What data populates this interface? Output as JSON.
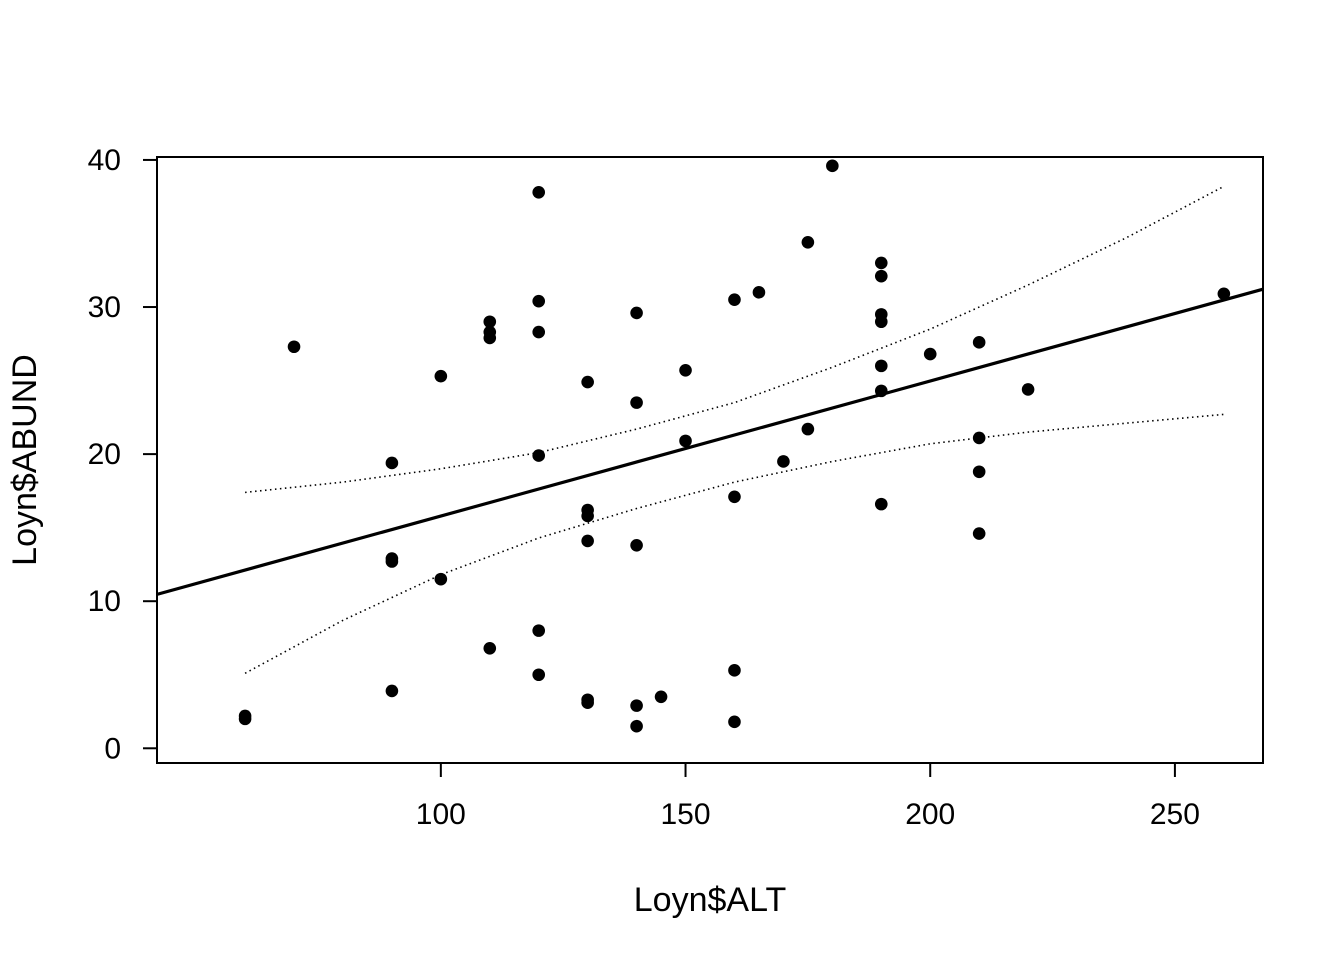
{
  "chart_data": {
    "type": "scatter",
    "title": "",
    "xlabel": "Loyn$ALT",
    "ylabel": "Loyn$ABUND",
    "xlim": [
      42,
      268
    ],
    "ylim": [
      -1,
      40.2
    ],
    "xticks": [
      100,
      150,
      200,
      250
    ],
    "xtick_labels": [
      "100",
      "150",
      "200",
      "250"
    ],
    "yticks": [
      0,
      10,
      20,
      30,
      40
    ],
    "ytick_labels": [
      "0",
      "10",
      "20",
      "30",
      "40"
    ],
    "grid": false,
    "legend": "none",
    "colors": {
      "points": "#000000",
      "lines": "#000000",
      "background": "#ffffff"
    },
    "points": [
      {
        "x": 60,
        "y": 2.2
      },
      {
        "x": 60,
        "y": 2.0
      },
      {
        "x": 70,
        "y": 27.3
      },
      {
        "x": 90,
        "y": 19.4
      },
      {
        "x": 90,
        "y": 12.9
      },
      {
        "x": 90,
        "y": 12.7
      },
      {
        "x": 90,
        "y": 3.9
      },
      {
        "x": 100,
        "y": 25.3
      },
      {
        "x": 100,
        "y": 11.5
      },
      {
        "x": 110,
        "y": 29.0
      },
      {
        "x": 110,
        "y": 28.3
      },
      {
        "x": 110,
        "y": 27.9
      },
      {
        "x": 110,
        "y": 6.8
      },
      {
        "x": 120,
        "y": 37.8
      },
      {
        "x": 120,
        "y": 30.4
      },
      {
        "x": 120,
        "y": 28.3
      },
      {
        "x": 120,
        "y": 19.9
      },
      {
        "x": 120,
        "y": 8.0
      },
      {
        "x": 120,
        "y": 5.0
      },
      {
        "x": 130,
        "y": 24.9
      },
      {
        "x": 130,
        "y": 16.2
      },
      {
        "x": 130,
        "y": 15.8
      },
      {
        "x": 130,
        "y": 14.1
      },
      {
        "x": 130,
        "y": 3.3
      },
      {
        "x": 130,
        "y": 3.1
      },
      {
        "x": 140,
        "y": 29.6
      },
      {
        "x": 140,
        "y": 23.5
      },
      {
        "x": 140,
        "y": 13.8
      },
      {
        "x": 140,
        "y": 2.9
      },
      {
        "x": 140,
        "y": 1.5
      },
      {
        "x": 145,
        "y": 3.5
      },
      {
        "x": 150,
        "y": 25.7
      },
      {
        "x": 150,
        "y": 20.9
      },
      {
        "x": 160,
        "y": 30.5
      },
      {
        "x": 160,
        "y": 17.1
      },
      {
        "x": 160,
        "y": 5.3
      },
      {
        "x": 160,
        "y": 1.8
      },
      {
        "x": 165,
        "y": 31.0
      },
      {
        "x": 170,
        "y": 19.5
      },
      {
        "x": 175,
        "y": 34.4
      },
      {
        "x": 175,
        "y": 21.7
      },
      {
        "x": 180,
        "y": 39.6
      },
      {
        "x": 190,
        "y": 33.0
      },
      {
        "x": 190,
        "y": 32.1
      },
      {
        "x": 190,
        "y": 29.5
      },
      {
        "x": 190,
        "y": 29.0
      },
      {
        "x": 190,
        "y": 26.0
      },
      {
        "x": 190,
        "y": 24.3
      },
      {
        "x": 190,
        "y": 16.6
      },
      {
        "x": 200,
        "y": 26.8
      },
      {
        "x": 210,
        "y": 27.6
      },
      {
        "x": 210,
        "y": 21.1
      },
      {
        "x": 210,
        "y": 18.8
      },
      {
        "x": 210,
        "y": 14.6
      },
      {
        "x": 220,
        "y": 24.4
      },
      {
        "x": 260,
        "y": 30.9
      }
    ],
    "regression_line": {
      "intercept": 6.61,
      "slope": 0.0918,
      "style": "solid"
    },
    "confidence_upper": {
      "style": "dotted",
      "x": [
        60,
        80,
        100,
        120,
        140,
        160,
        180,
        200,
        220,
        240,
        260
      ],
      "y": [
        17.4,
        18.1,
        19.0,
        20.1,
        21.7,
        23.5,
        25.9,
        28.5,
        31.5,
        34.7,
        38.2
      ]
    },
    "confidence_lower": {
      "style": "dotted",
      "x": [
        60,
        80,
        100,
        120,
        140,
        160,
        180,
        200,
        220,
        240,
        260
      ],
      "y": [
        5.1,
        8.7,
        11.8,
        14.3,
        16.3,
        18.1,
        19.5,
        20.7,
        21.5,
        22.1,
        22.7
      ]
    }
  }
}
